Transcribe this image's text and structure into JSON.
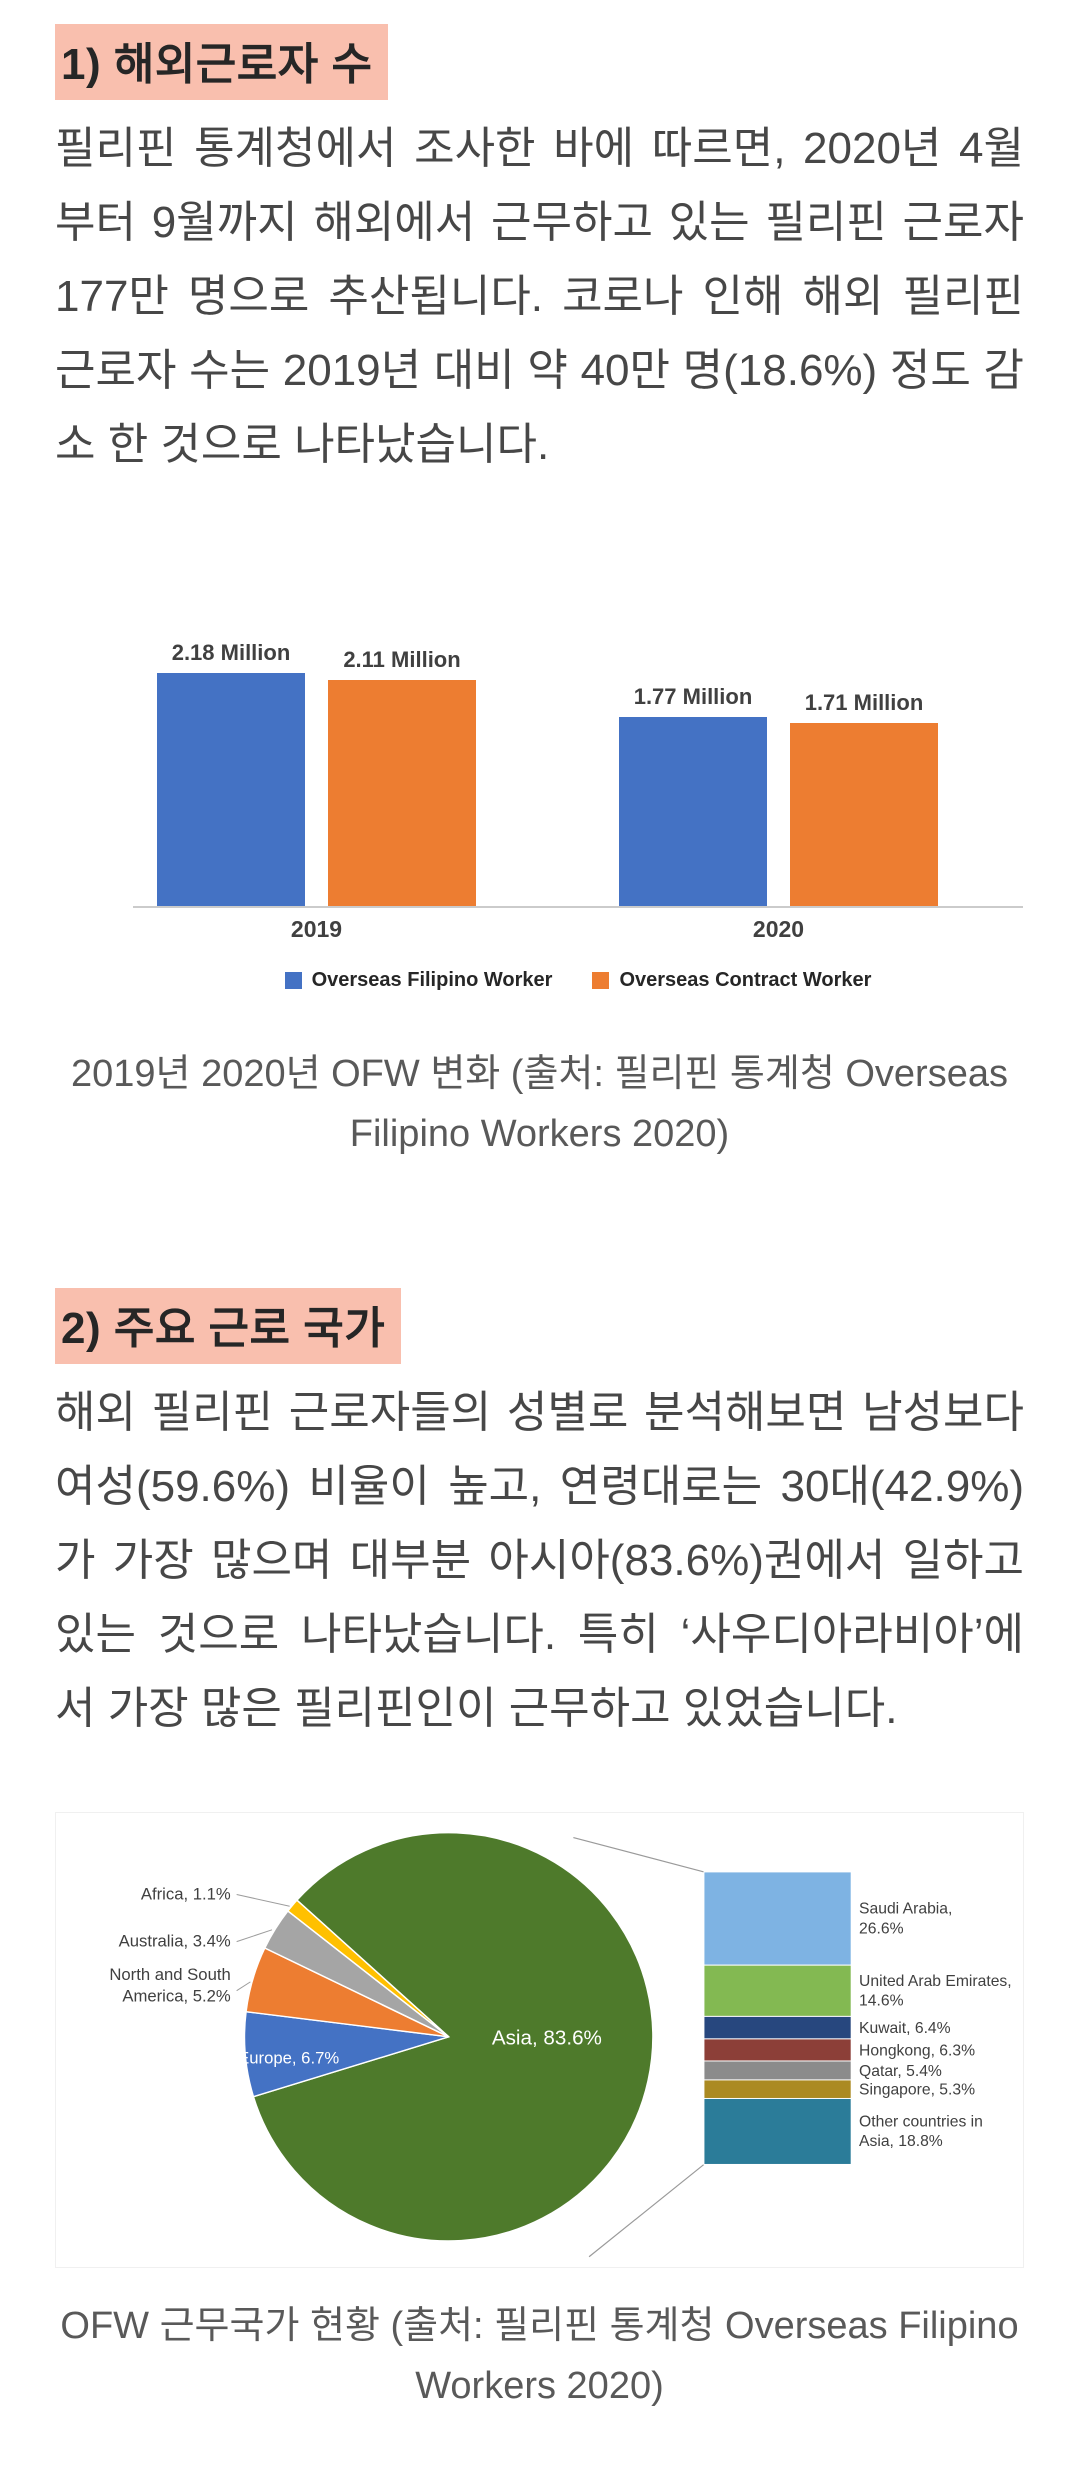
{
  "page": {
    "background": "#ffffff",
    "highlight_color": "#f9bfae",
    "body_text_color": "#474747",
    "caption_color": "#595959"
  },
  "sections": [
    {
      "heading": "1) 해외근로자 수",
      "paragraph": "필리핀 통계청에서 조사한 바에 따르면, 2020년 4월부터 9월까지 해외에서 근무하고 있는 필리핀 근로자 177만 명으로 추산됩니다. 코로나 인해 해외 필리핀 근로자 수는 2019년 대비 약 40만 명(18.6%) 정도 감소 한 것으로 나타났습니다.",
      "caption": "2019년 2020년 OFW 변화 (출처: 필리핀 통계청 Overseas Filipino Workers 2020)"
    },
    {
      "heading": "2) 주요 근로 국가",
      "paragraph": "해외 필리핀 근로자들의 성별로 분석해보면 남성보다 여성(59.6%) 비율이 높고, 연령대로는 30대(42.9%)가 가장 많으며 대부분 아시아(83.6%)권에서 일하고 있는 것으로 나타났습니다. 특히 ‘사우디아라비아’에서 가장 많은 필리핀인이 근무하고 있었습니다.",
      "caption": "OFW 근무국가 현황 (출처: 필리핀 통계청 Overseas Filipino Workers 2020)"
    }
  ],
  "chart_data": [
    {
      "type": "bar",
      "title": "",
      "categories": [
        "2019",
        "2020"
      ],
      "series": [
        {
          "name": "Overseas Filipino Worker",
          "color": "#4472c4",
          "values": [
            2.18,
            1.77
          ],
          "value_labels": [
            "2.18 Million",
            "1.77 Million"
          ]
        },
        {
          "name": "Overseas Contract Worker",
          "color": "#ed7d31",
          "values": [
            2.11,
            1.71
          ],
          "value_labels": [
            "2.11 Million",
            "1.71 Million"
          ]
        }
      ],
      "unit": "Million",
      "ylim": [
        0,
        2.4
      ],
      "grid": false,
      "legend_position": "bottom"
    },
    {
      "type": "pie",
      "variant": "bar-of-pie",
      "start_angle": -48,
      "slices": [
        {
          "name": "Asia",
          "label": "Asia, 83.6%",
          "value": 83.6,
          "color": "#4e7a2b",
          "label_inside": true
        },
        {
          "name": "Europe",
          "label": "Europe, 6.7%",
          "value": 6.7,
          "color": "#4472c4",
          "label_inside": true
        },
        {
          "name": "North and South America",
          "label": "North and South America, 5.2%",
          "label_lines": [
            "North and South",
            "America, 5.2%"
          ],
          "value": 5.2,
          "color": "#ed7d31",
          "label_inside": false
        },
        {
          "name": "Australia",
          "label": "Australia, 3.4%",
          "value": 3.4,
          "color": "#a5a5a5",
          "label_inside": false
        },
        {
          "name": "Africa",
          "label": "Africa, 1.1%",
          "value": 1.1,
          "color": "#ffc000",
          "label_inside": false
        }
      ],
      "breakout": {
        "group": "Asia",
        "items": [
          {
            "name": "Saudi Arabia",
            "label": "Saudi Arabia, 26.6%",
            "label_lines": [
              "Saudi Arabia,",
              "26.6%"
            ],
            "value": 26.6,
            "color": "#7eb3e3"
          },
          {
            "name": "United Arab Emirates",
            "label": "United Arab Emirates, 14.6%",
            "label_lines": [
              "United Arab Emirates,",
              "14.6%"
            ],
            "value": 14.6,
            "color": "#83b952"
          },
          {
            "name": "Kuwait",
            "label": "Kuwait, 6.4%",
            "value": 6.4,
            "color": "#27477e"
          },
          {
            "name": "Hongkong",
            "label": "Hongkong, 6.3%",
            "value": 6.3,
            "color": "#8c3f38"
          },
          {
            "name": "Qatar",
            "label": "Qatar, 5.4%",
            "value": 5.4,
            "color": "#8b8b8b"
          },
          {
            "name": "Singapore",
            "label": "Singapore, 5.3%",
            "value": 5.3,
            "color": "#ab8a22"
          },
          {
            "name": "Other countries in Asia",
            "label": "Other countries in Asia, 18.8%",
            "label_lines": [
              "Other countries in",
              "Asia, 18.8%"
            ],
            "value": 18.8,
            "color": "#2b7c99"
          }
        ]
      }
    }
  ]
}
